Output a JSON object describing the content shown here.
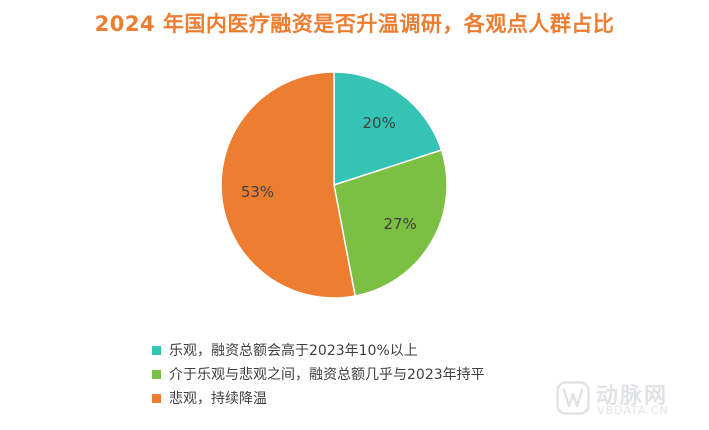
{
  "chart_data": {
    "type": "pie",
    "title": "2024 年国内医疗融资是否升温调研，各观点人群占比",
    "categories": [
      "乐观，融资总额会高于2023年10%以上",
      "介于乐观与悲观之间，融资总额几乎与2023年持平",
      "悲观，持续降温"
    ],
    "values": [
      20,
      27,
      53
    ],
    "data_labels": [
      "20%",
      "27%",
      "53%"
    ],
    "colors": [
      "#34c3b5",
      "#7bbf43",
      "#ed7d31"
    ],
    "start_angle_deg": 0,
    "direction": "clockwise",
    "legend_position": "bottom"
  },
  "watermark": {
    "name": "动脉网",
    "url": "VBDATA.CN"
  }
}
